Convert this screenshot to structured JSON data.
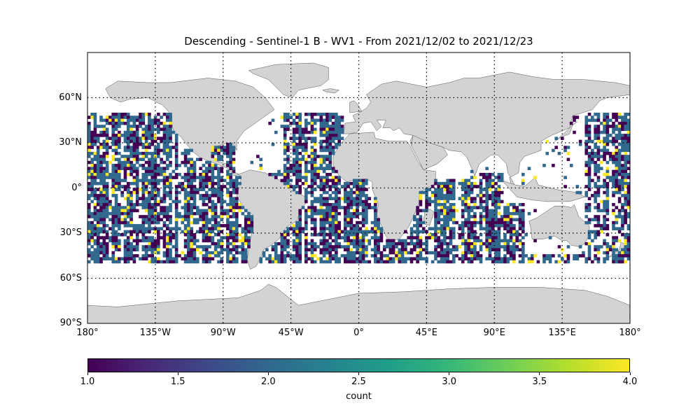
{
  "title": "Descending - Sentinel-1 B - WV1 - From 2021/12/02 to 2021/12/23",
  "x_ticks": [
    {
      "lon": -180,
      "label": "180°"
    },
    {
      "lon": -135,
      "label": "135°W"
    },
    {
      "lon": -90,
      "label": "90°W"
    },
    {
      "lon": -45,
      "label": "45°W"
    },
    {
      "lon": 0,
      "label": "0°"
    },
    {
      "lon": 45,
      "label": "45°E"
    },
    {
      "lon": 90,
      "label": "90°E"
    },
    {
      "lon": 135,
      "label": "135°E"
    },
    {
      "lon": 180,
      "label": "180°"
    }
  ],
  "y_ticks": [
    {
      "lat": 60,
      "label": "60°N"
    },
    {
      "lat": 30,
      "label": "30°N"
    },
    {
      "lat": 0,
      "label": "0°"
    },
    {
      "lat": -30,
      "label": "30°S"
    },
    {
      "lat": -60,
      "label": "60°S"
    },
    {
      "lat": -90,
      "label": "90°S"
    }
  ],
  "colorbar": {
    "label": "count",
    "ticks": [
      "1.0",
      "1.5",
      "2.0",
      "2.5",
      "3.0",
      "3.5",
      "4.0"
    ],
    "range": [
      1.0,
      4.0
    ],
    "colormap": "viridis"
  },
  "colors": {
    "land": "#d3d3d3",
    "coast": "#555555",
    "grid": "#000000",
    "count_1": "#440154",
    "count_2": "#31688e",
    "count_4": "#fde725"
  },
  "map": {
    "projection": "PlateCarree",
    "lon_range": [
      -180,
      180
    ],
    "lat_range": [
      -90,
      90
    ],
    "data_lat_range": [
      -50,
      50
    ],
    "gridlines": "dotted",
    "gridline_lons": [
      -135,
      -90,
      -45,
      0,
      45,
      90,
      135,
      180
    ],
    "gridline_lats": [
      60,
      30,
      0,
      -30,
      -60
    ]
  }
}
